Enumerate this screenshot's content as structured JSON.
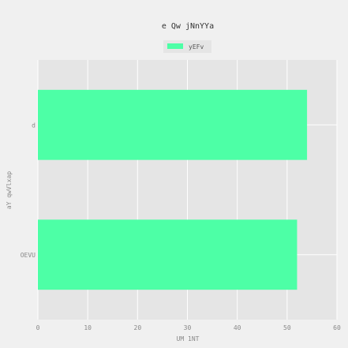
{
  "chart_data": {
    "type": "bar",
    "orientation": "horizontal",
    "title": "e Qw  jNnYYa",
    "xlabel": "UM 1NT",
    "ylabel": "aY qwVlxap",
    "xlim": [
      0,
      60
    ],
    "xticks": [
      "0",
      "10",
      "20",
      "30",
      "40",
      "50",
      "60"
    ],
    "categories": [
      "d",
      "OEVU"
    ],
    "series": [
      {
        "name": "yEFv",
        "values": [
          54,
          52
        ],
        "color": "#4dffa6"
      }
    ],
    "grid": true,
    "legend_position": "top-center",
    "plot_background": "#e5e5e5",
    "grid_color": "#ffffff"
  }
}
